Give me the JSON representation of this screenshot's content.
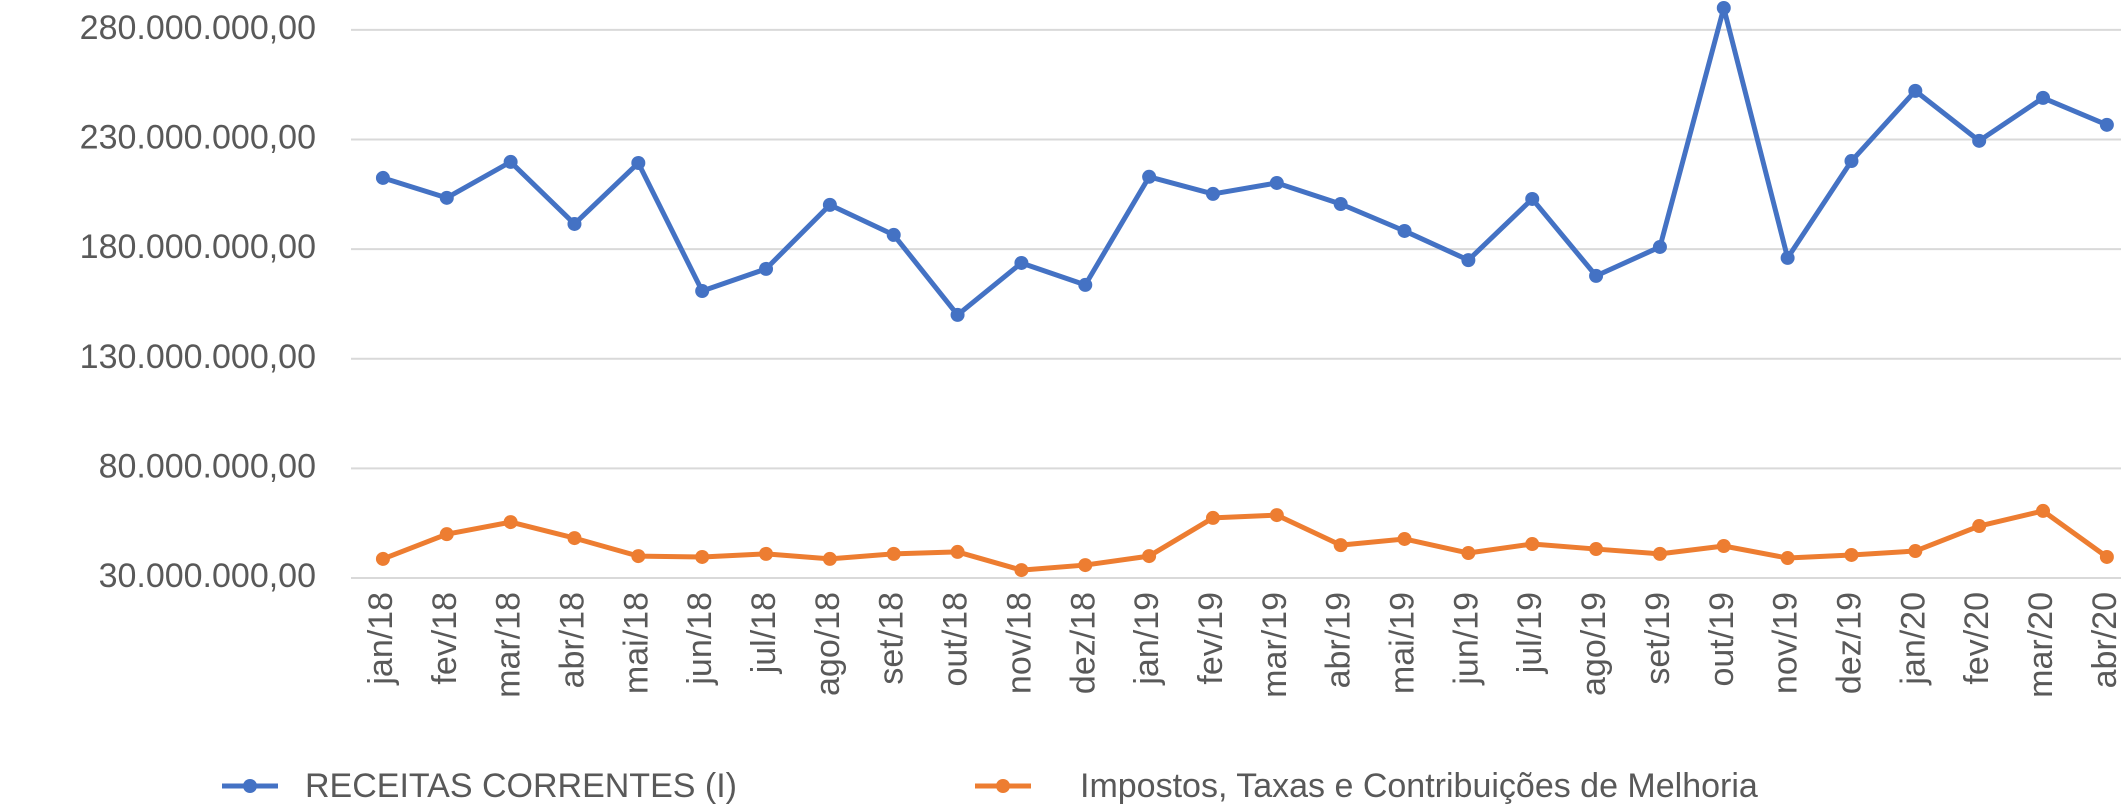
{
  "chart_data": {
    "type": "line",
    "categories": [
      "jan/18",
      "fev/18",
      "mar/18",
      "abr/18",
      "mai/18",
      "jun/18",
      "jul/18",
      "ago/18",
      "set/18",
      "out/18",
      "nov/18",
      "dez/18",
      "jan/19",
      "fev/19",
      "mar/19",
      "abr/19",
      "mai/19",
      "jun/19",
      "jul/19",
      "ago/19",
      "set/19",
      "out/19",
      "nov/19",
      "dez/19",
      "jan/20",
      "fev/20",
      "mar/20",
      "abr/20"
    ],
    "series": [
      {
        "name": "RECEITAS CORRENTES (I)",
        "color": "#4472c4",
        "values": [
          212500000,
          203400000,
          219800000,
          191500000,
          219300000,
          160900000,
          171000000,
          200200000,
          186500000,
          150000000,
          173700000,
          163700000,
          213000000,
          205200000,
          210200000,
          200600000,
          188300000,
          175000000,
          202900000,
          167800000,
          181000000,
          290000000,
          176000000,
          220200000,
          252200000,
          229400000,
          249000000,
          236700000
        ]
      },
      {
        "name": "Impostos, Taxas e Contribuições de Melhoria",
        "color": "#ed7d31",
        "values": [
          38700000,
          50000000,
          55500000,
          48200000,
          40000000,
          39600000,
          41000000,
          38700000,
          41000000,
          41900000,
          33600000,
          35900000,
          40000000,
          57400000,
          58700000,
          45000000,
          47800000,
          41400000,
          45500000,
          43200000,
          41000000,
          44600000,
          39100000,
          40500000,
          42300000,
          53700000,
          60600000,
          39600000
        ]
      }
    ],
    "ylim": [
      30000000,
      290000000
    ],
    "yticks": [
      {
        "value": 30000000,
        "label": "30.000.000,00"
      },
      {
        "value": 80000000,
        "label": "80.000.000,00"
      },
      {
        "value": 130000000,
        "label": "130.000.000,00"
      },
      {
        "value": 180000000,
        "label": "180.000.000,00"
      },
      {
        "value": 230000000,
        "label": "230.000.000,00"
      },
      {
        "value": 280000000,
        "label": "280.000.000,00"
      }
    ],
    "grid": true,
    "legend": "bottom"
  }
}
